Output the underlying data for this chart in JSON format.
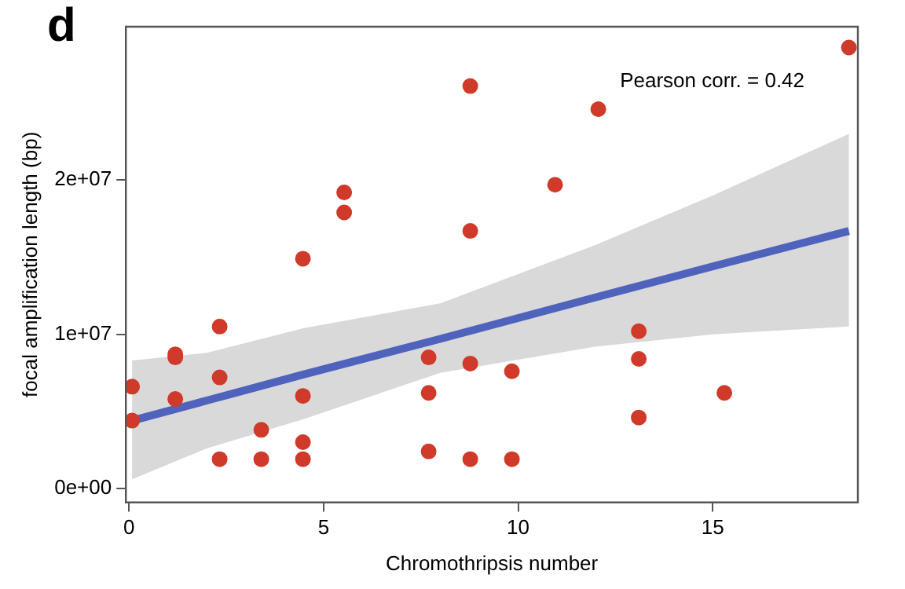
{
  "chart_data": {
    "type": "scatter",
    "title": "d",
    "xlabel": "Chromothripsis number",
    "ylabel": "focal amplification length (bp)",
    "annotations": [
      "Pearson corr. = 0.42"
    ],
    "xlim": [
      -0.08,
      18.73
    ],
    "xticks": [
      0,
      5,
      10,
      15
    ],
    "ylim": [
      -900000,
      29950000
    ],
    "yticks": [
      {
        "value": 0,
        "label": "0e+00"
      },
      {
        "value": 10000000,
        "label": "1e+07"
      },
      {
        "value": 20000000,
        "label": "2e+07"
      }
    ],
    "grid": false,
    "legend": false,
    "marker": "circle",
    "series": [
      {
        "color": "#d03a2a",
        "x": [
          0.08,
          0.08,
          1.19,
          1.19,
          1.19,
          2.33,
          2.33,
          2.33,
          3.4,
          3.4,
          4.47,
          4.47,
          4.47,
          4.47,
          5.53,
          5.53,
          7.7,
          7.7,
          7.7,
          8.77,
          8.77,
          8.77,
          8.77,
          9.84,
          9.84,
          10.95,
          12.06,
          13.1,
          13.1,
          13.1,
          15.3,
          18.5
        ],
        "values": [
          6600000,
          4400000,
          8700000,
          8500000,
          5800000,
          10500000,
          7200000,
          1900000,
          3800000,
          1900000,
          14900000,
          6000000,
          3000000,
          1900000,
          19200000,
          17900000,
          8500000,
          6200000,
          2400000,
          26100000,
          16700000,
          8100000,
          1900000,
          7600000,
          1900000,
          19700000,
          24600000,
          10200000,
          8400000,
          4600000,
          6200000,
          28600000
        ]
      },
      {
        "type": "line",
        "color": "#4f63bd",
        "marker": "none",
        "x": [
          0.08,
          2,
          4.5,
          8,
          12,
          15,
          18.5
        ],
        "values": [
          4400000,
          5700000,
          7400000,
          9700000,
          12400000,
          14400000,
          16700000
        ],
        "lower": [
          600000,
          2600000,
          4500000,
          7500000,
          9200000,
          10000000,
          10500000
        ],
        "upper": [
          8300000,
          8800000,
          10400000,
          12000000,
          15800000,
          19000000,
          23000000
        ]
      }
    ]
  }
}
